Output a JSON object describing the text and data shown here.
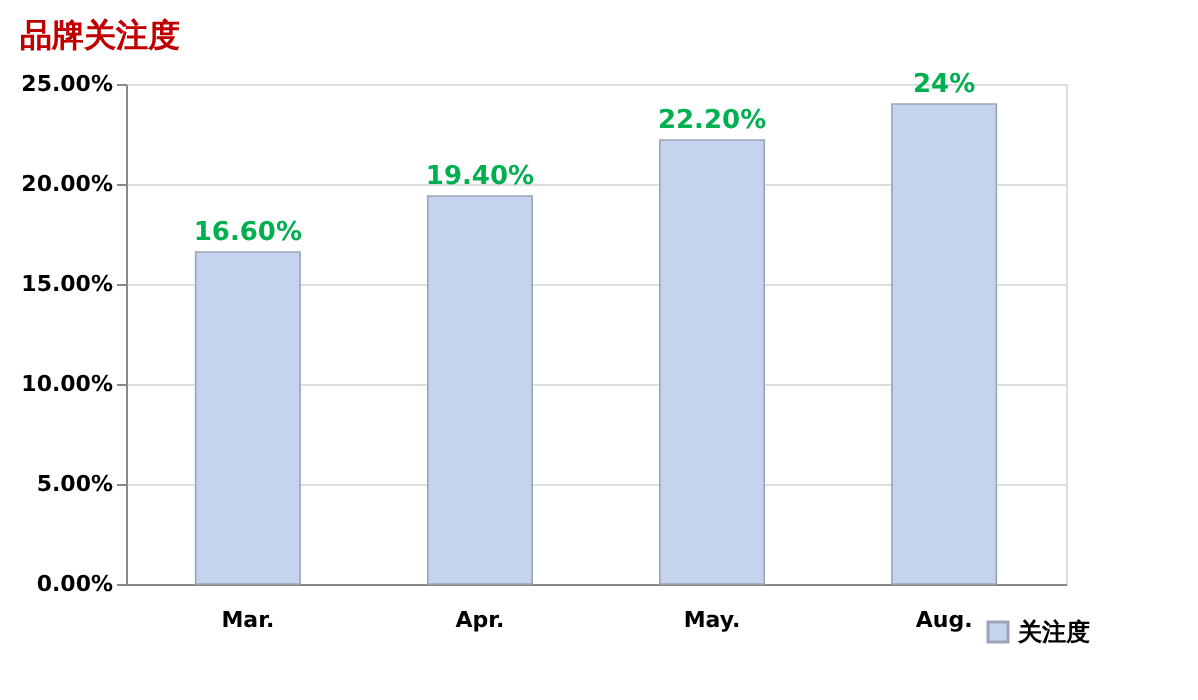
{
  "chart_data": {
    "type": "bar",
    "title": "品牌关注度",
    "categories": [
      "Mar.",
      "Apr.",
      "May.",
      "Aug."
    ],
    "series": [
      {
        "name": "关注度",
        "color": "#c5d3ee",
        "values": [
          16.6,
          19.4,
          22.2,
          24
        ],
        "value_labels": [
          "16.60%",
          "19.40%",
          "22.20%",
          "24%"
        ]
      }
    ],
    "ylim": [
      0,
      25
    ],
    "yticks": [
      {
        "value": 0,
        "label": "0.00%"
      },
      {
        "value": 5,
        "label": "5.00%"
      },
      {
        "value": 10,
        "label": "10.00%"
      },
      {
        "value": 15,
        "label": "15.00%"
      },
      {
        "value": 20,
        "label": "20.00%"
      },
      {
        "value": 25,
        "label": "25.00%"
      }
    ],
    "grid": "y",
    "legend": "bottom right"
  }
}
